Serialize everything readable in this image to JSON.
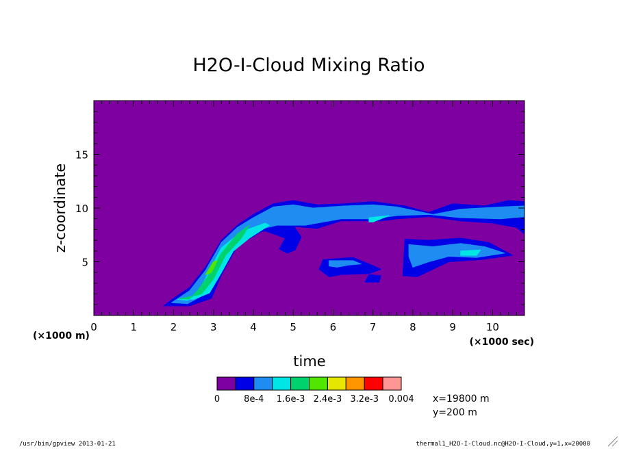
{
  "chart_data": {
    "type": "heatmap",
    "title": "H2O-I-Cloud Mixing Ratio",
    "xlabel": "time",
    "ylabel": "z-coordinate",
    "x_units_label": "(×1000 sec)",
    "y_units_label": "(×1000 m)",
    "xlim": [
      0,
      10.8
    ],
    "ylim": [
      0,
      20
    ],
    "x_ticks": [
      "0",
      "1",
      "2",
      "3",
      "4",
      "5",
      "6",
      "7",
      "8",
      "9",
      "10"
    ],
    "y_ticks": [
      "5",
      "10",
      "15"
    ],
    "x_tick_values": [
      0,
      1,
      2,
      3,
      4,
      5,
      6,
      7,
      8,
      9,
      10
    ],
    "y_tick_values": [
      5,
      10,
      15
    ],
    "background_color": "#7f00a0",
    "colorbar": {
      "colors": [
        "#7f00a0",
        "#0000e6",
        "#1e8cf0",
        "#00e6e6",
        "#00d26e",
        "#50e600",
        "#e6e600",
        "#ff9600",
        "#ff0000",
        "#ff9696"
      ],
      "labels": [
        "0",
        "8e-4",
        "1.6e-3",
        "2.4e-3",
        "3.2e-3",
        "0.004"
      ]
    },
    "annotations": [
      "x=19800 m",
      "y=200 m"
    ],
    "regions": [
      {
        "level": 1,
        "color": "#0000e6",
        "points": [
          [
            1.75,
            0.9
          ],
          [
            2.4,
            0.9
          ],
          [
            2.95,
            1.6
          ],
          [
            3.2,
            3.8
          ],
          [
            3.6,
            6.5
          ],
          [
            4.2,
            7.8
          ],
          [
            5.0,
            8.3
          ],
          [
            5.6,
            8.1
          ],
          [
            6.2,
            8.8
          ],
          [
            7.2,
            8.8
          ],
          [
            7.6,
            9.0
          ],
          [
            8.4,
            9.2
          ],
          [
            9.2,
            8.8
          ],
          [
            10.0,
            8.6
          ],
          [
            10.6,
            8.2
          ],
          [
            10.8,
            7.6
          ],
          [
            10.8,
            10.6
          ],
          [
            10.4,
            10.7
          ],
          [
            9.8,
            10.2
          ],
          [
            9.0,
            10.4
          ],
          [
            8.4,
            9.6
          ],
          [
            7.8,
            10.2
          ],
          [
            7.0,
            10.6
          ],
          [
            6.3,
            10.4
          ],
          [
            5.6,
            10.3
          ],
          [
            5.0,
            10.7
          ],
          [
            4.5,
            10.4
          ],
          [
            4.0,
            9.4
          ],
          [
            3.6,
            8.4
          ],
          [
            3.2,
            7.0
          ],
          [
            2.8,
            4.5
          ],
          [
            2.4,
            2.6
          ],
          [
            2.0,
            1.6
          ]
        ]
      },
      {
        "level": 1,
        "color": "#0000e6",
        "points": [
          [
            4.2,
            8.0
          ],
          [
            5.0,
            8.4
          ],
          [
            5.2,
            7.3
          ],
          [
            5.05,
            6.1
          ],
          [
            4.85,
            5.8
          ],
          [
            4.65,
            6.2
          ],
          [
            4.8,
            7.2
          ],
          [
            4.5,
            7.6
          ]
        ]
      },
      {
        "level": 1,
        "color": "#0000e6",
        "points": [
          [
            5.75,
            5.2
          ],
          [
            6.5,
            5.4
          ],
          [
            6.9,
            4.8
          ],
          [
            7.2,
            4.3
          ],
          [
            6.9,
            3.9
          ],
          [
            6.2,
            3.8
          ],
          [
            5.9,
            3.6
          ],
          [
            5.65,
            4.3
          ]
        ]
      },
      {
        "level": 1,
        "color": "#0000e6",
        "points": [
          [
            6.9,
            3.8
          ],
          [
            7.2,
            3.7
          ],
          [
            7.15,
            3.1
          ],
          [
            6.8,
            3.1
          ]
        ]
      },
      {
        "level": 1,
        "color": "#0000e6",
        "points": [
          [
            7.8,
            7.1
          ],
          [
            8.4,
            7.0
          ],
          [
            9.2,
            7.2
          ],
          [
            9.9,
            6.8
          ],
          [
            10.5,
            5.6
          ],
          [
            9.7,
            5.2
          ],
          [
            8.9,
            5.0
          ],
          [
            8.5,
            4.3
          ],
          [
            8.1,
            3.6
          ],
          [
            7.75,
            3.7
          ]
        ]
      },
      {
        "level": 2,
        "color": "#1e8cf0",
        "points": [
          [
            1.95,
            1.2
          ],
          [
            2.35,
            1.1
          ],
          [
            2.7,
            1.8
          ],
          [
            2.95,
            3.8
          ],
          [
            3.3,
            6.4
          ],
          [
            3.9,
            7.8
          ],
          [
            4.6,
            8.4
          ],
          [
            5.3,
            8.4
          ],
          [
            6.2,
            9.0
          ],
          [
            7.0,
            9.0
          ],
          [
            7.6,
            9.3
          ],
          [
            8.4,
            9.4
          ],
          [
            9.2,
            9.1
          ],
          [
            10.2,
            9.0
          ],
          [
            10.8,
            9.2
          ],
          [
            10.8,
            10.2
          ],
          [
            10.2,
            10.1
          ],
          [
            9.2,
            9.9
          ],
          [
            8.5,
            9.4
          ],
          [
            7.6,
            10.1
          ],
          [
            7.0,
            10.3
          ],
          [
            6.3,
            10.2
          ],
          [
            5.5,
            10.0
          ],
          [
            5.0,
            10.3
          ],
          [
            4.5,
            10.1
          ],
          [
            4.0,
            9.1
          ],
          [
            3.6,
            8.2
          ],
          [
            3.2,
            6.8
          ],
          [
            2.8,
            4.2
          ],
          [
            2.4,
            2.3
          ]
        ]
      },
      {
        "level": 2,
        "color": "#1e8cf0",
        "points": [
          [
            5.9,
            5.1
          ],
          [
            6.5,
            5.1
          ],
          [
            6.7,
            4.8
          ],
          [
            6.4,
            4.7
          ],
          [
            6.1,
            4.5
          ],
          [
            5.9,
            4.6
          ]
        ]
      },
      {
        "level": 2,
        "color": "#1e8cf0",
        "points": [
          [
            7.9,
            6.6
          ],
          [
            8.5,
            6.4
          ],
          [
            9.2,
            6.7
          ],
          [
            9.8,
            6.4
          ],
          [
            10.3,
            5.8
          ],
          [
            9.6,
            5.4
          ],
          [
            8.9,
            5.5
          ],
          [
            8.4,
            5.0
          ],
          [
            8.0,
            4.5
          ],
          [
            7.9,
            5.5
          ]
        ]
      },
      {
        "level": 3,
        "color": "#00e6e6",
        "points": [
          [
            2.1,
            1.5
          ],
          [
            2.35,
            1.4
          ],
          [
            2.6,
            2.0
          ],
          [
            2.85,
            3.8
          ],
          [
            3.2,
            6.3
          ],
          [
            3.7,
            7.8
          ],
          [
            4.3,
            8.6
          ],
          [
            4.4,
            8.4
          ],
          [
            3.9,
            7.2
          ],
          [
            3.5,
            6.0
          ],
          [
            3.2,
            4.0
          ],
          [
            2.9,
            2.1
          ],
          [
            2.5,
            1.5
          ]
        ]
      },
      {
        "level": 3,
        "color": "#00e6e6",
        "points": [
          [
            6.9,
            9.1
          ],
          [
            7.4,
            9.3
          ],
          [
            7.0,
            8.7
          ],
          [
            6.9,
            8.7
          ]
        ]
      },
      {
        "level": 3,
        "color": "#00e6e6",
        "points": [
          [
            9.2,
            6.0
          ],
          [
            9.7,
            6.1
          ],
          [
            9.6,
            5.6
          ],
          [
            9.2,
            5.6
          ]
        ]
      },
      {
        "level": 4,
        "color": "#00d26e",
        "points": [
          [
            2.15,
            1.55
          ],
          [
            2.4,
            1.55
          ],
          [
            2.6,
            2.3
          ],
          [
            2.85,
            3.6
          ],
          [
            3.2,
            5.8
          ],
          [
            3.6,
            7.6
          ],
          [
            3.9,
            8.4
          ],
          [
            3.7,
            7.2
          ],
          [
            3.3,
            5.6
          ],
          [
            3.0,
            3.4
          ],
          [
            2.7,
            2.0
          ]
        ]
      },
      {
        "level": 5,
        "color": "#50e600",
        "points": [
          [
            2.8,
            3.8
          ],
          [
            2.95,
            4.0
          ],
          [
            3.1,
            5.1
          ],
          [
            3.0,
            5.0
          ]
        ]
      }
    ]
  },
  "footer": {
    "left": "/usr/bin/gpview  2013-01-21",
    "right": "thermal1_H2O-I-Cloud.nc@H2O-I-Cloud,y=1,x=20000"
  }
}
